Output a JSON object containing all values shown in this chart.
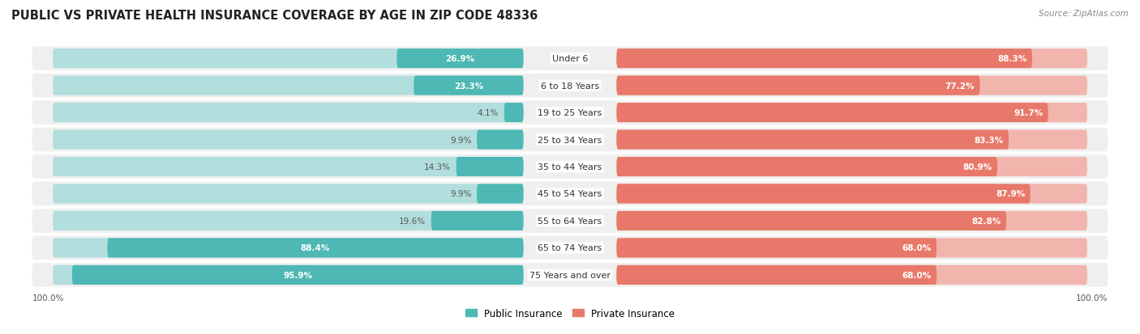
{
  "title": "PUBLIC VS PRIVATE HEALTH INSURANCE COVERAGE BY AGE IN ZIP CODE 48336",
  "source": "Source: ZipAtlas.com",
  "categories": [
    "Under 6",
    "6 to 18 Years",
    "19 to 25 Years",
    "25 to 34 Years",
    "35 to 44 Years",
    "45 to 54 Years",
    "55 to 64 Years",
    "65 to 74 Years",
    "75 Years and over"
  ],
  "public_values": [
    26.9,
    23.3,
    4.1,
    9.9,
    14.3,
    9.9,
    19.6,
    88.4,
    95.9
  ],
  "private_values": [
    88.3,
    77.2,
    91.7,
    83.3,
    80.9,
    87.9,
    82.8,
    68.0,
    68.0
  ],
  "public_color": "#4db8b4",
  "private_color": "#e8796a",
  "public_color_light": "#b2dedd",
  "private_color_light": "#f2b5ae",
  "bg_color": "#efefef",
  "title_fontsize": 10.5,
  "label_fontsize": 8,
  "value_fontsize": 7.5,
  "figwidth": 14.06,
  "figheight": 4.14
}
